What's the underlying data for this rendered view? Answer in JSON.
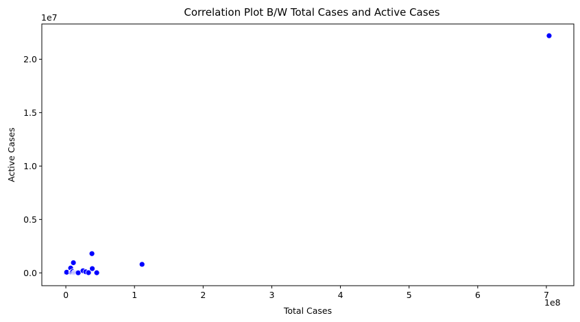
{
  "chart_data": {
    "type": "scatter",
    "title": "Correlation Plot B/W Total Cases and Active Cases",
    "xlabel": "Total Cases",
    "ylabel": "Active Cases",
    "x_offset_text": "1e8",
    "y_offset_text": "1e7",
    "x_tick_values": [
      0,
      100000000,
      200000000,
      300000000,
      400000000,
      500000000,
      600000000,
      700000000
    ],
    "x_tick_labels": [
      "0",
      "1",
      "2",
      "3",
      "4",
      "5",
      "6",
      "7"
    ],
    "y_tick_values": [
      0,
      5000000,
      10000000,
      15000000,
      20000000
    ],
    "y_tick_labels": [
      "0.0",
      "0.5",
      "1.0",
      "1.5",
      "2.0"
    ],
    "xlim": [
      -35000000,
      740000000
    ],
    "ylim": [
      -1200000,
      23300000
    ],
    "grid": false,
    "marker_color": "#0000ff",
    "marker_edge_color": "#ffffff",
    "points": [
      {
        "x": 0,
        "y": 0
      },
      {
        "x": 500000,
        "y": 30000
      },
      {
        "x": 1200000,
        "y": 60000
      },
      {
        "x": 7000000,
        "y": 450000
      },
      {
        "x": 8000000,
        "y": 50000
      },
      {
        "x": 9000000,
        "y": 80000
      },
      {
        "x": 10000000,
        "y": 120000
      },
      {
        "x": 11000000,
        "y": 950000
      },
      {
        "x": 12000000,
        "y": 20000
      },
      {
        "x": 13000000,
        "y": 40000
      },
      {
        "x": 14000000,
        "y": 10000
      },
      {
        "x": 15000000,
        "y": 30000
      },
      {
        "x": 16000000,
        "y": 10000
      },
      {
        "x": 17000000,
        "y": 20000
      },
      {
        "x": 18000000,
        "y": 5000
      },
      {
        "x": 25000000,
        "y": 200000
      },
      {
        "x": 29000000,
        "y": 100000
      },
      {
        "x": 33000000,
        "y": 20000
      },
      {
        "x": 38000000,
        "y": 1800000
      },
      {
        "x": 38500000,
        "y": 400000
      },
      {
        "x": 45000000,
        "y": 10000
      },
      {
        "x": 111000000,
        "y": 800000
      },
      {
        "x": 704000000,
        "y": 22200000
      }
    ]
  }
}
